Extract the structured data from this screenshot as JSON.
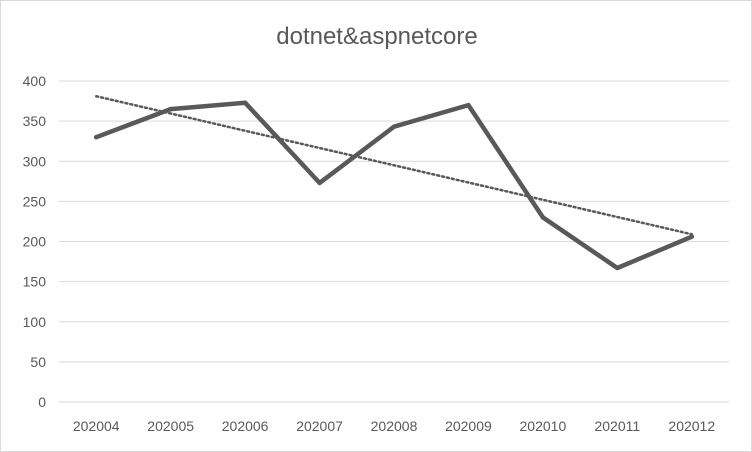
{
  "chart_data": {
    "type": "line",
    "title": "dotnet&aspnetcore",
    "categories": [
      "202004",
      "202005",
      "202006",
      "202007",
      "202008",
      "202009",
      "202010",
      "202011",
      "202012"
    ],
    "series": [
      {
        "values": [
          330,
          365,
          373,
          273,
          343,
          370,
          230,
          167,
          206
        ],
        "color": "#595959"
      }
    ],
    "trendline": {
      "type": "linear",
      "style": "dotted",
      "color": "#595959",
      "start": 381,
      "end": 209
    },
    "ylim": [
      0,
      400
    ],
    "yticks": [
      0,
      50,
      100,
      150,
      200,
      250,
      300,
      350,
      400
    ],
    "grid": true,
    "legend": "none",
    "gridline_color": "#d9d9d9",
    "text_color": "#595959"
  }
}
